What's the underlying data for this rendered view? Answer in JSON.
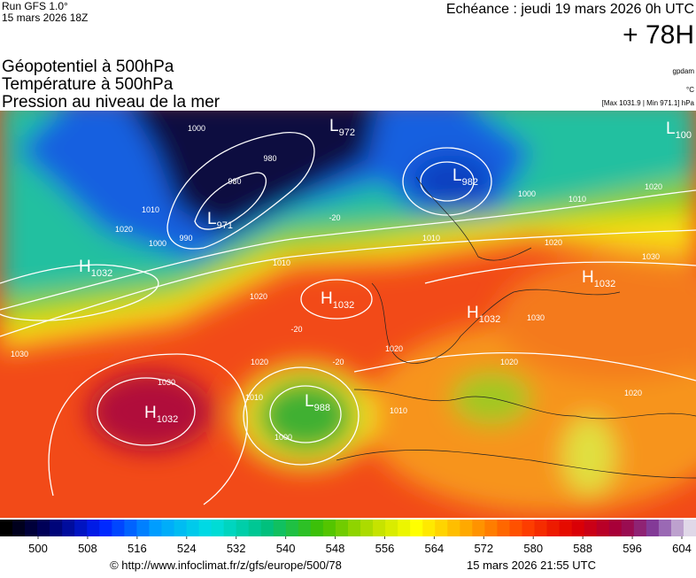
{
  "header": {
    "run": "Run GFS 1.0°",
    "run_date": "15 mars 2026 18Z",
    "valid": "Echéance : jeudi 19 mars 2026 0h UTC",
    "lead": "+ 78H"
  },
  "titles": [
    "Géopotentiel à 500hPa",
    "Température à 500hPa",
    "Pression au niveau de la mer"
  ],
  "units": {
    "geopotential": "gpdam",
    "temperature": "°C",
    "pressure": "[Max 1031.9 | Min 971.1] hPa"
  },
  "centers": [
    {
      "type": "L",
      "value": "972"
    },
    {
      "type": "L",
      "value": "971"
    },
    {
      "type": "L",
      "value": "982"
    },
    {
      "type": "L",
      "value": "100"
    },
    {
      "type": "H",
      "value": "1032"
    },
    {
      "type": "H",
      "value": "1032"
    },
    {
      "type": "H",
      "value": "1032"
    },
    {
      "type": "H",
      "value": "1032"
    },
    {
      "type": "H",
      "value": "1032"
    },
    {
      "type": "L",
      "value": "988"
    }
  ],
  "isobar_labels": [
    "1000",
    "980",
    "980",
    "1010",
    "1020",
    "1000",
    "990",
    "1010",
    "1020",
    "1000",
    "1010",
    "1010",
    "1020",
    "1030",
    "1020",
    "1030",
    "1020",
    "1010",
    "1000",
    "1010",
    "1020",
    "1030",
    "1020",
    "1020",
    "1030",
    "-20",
    "-20",
    "-20"
  ],
  "scale": {
    "ticks": [
      500,
      508,
      516,
      524,
      532,
      540,
      548,
      556,
      564,
      572,
      580,
      588,
      596,
      604
    ]
  },
  "footer": {
    "url": "© http://www.infoclimat.fr/z/gfs/europe/500/78",
    "time": "15 mars 2026 21:55 UTC"
  }
}
